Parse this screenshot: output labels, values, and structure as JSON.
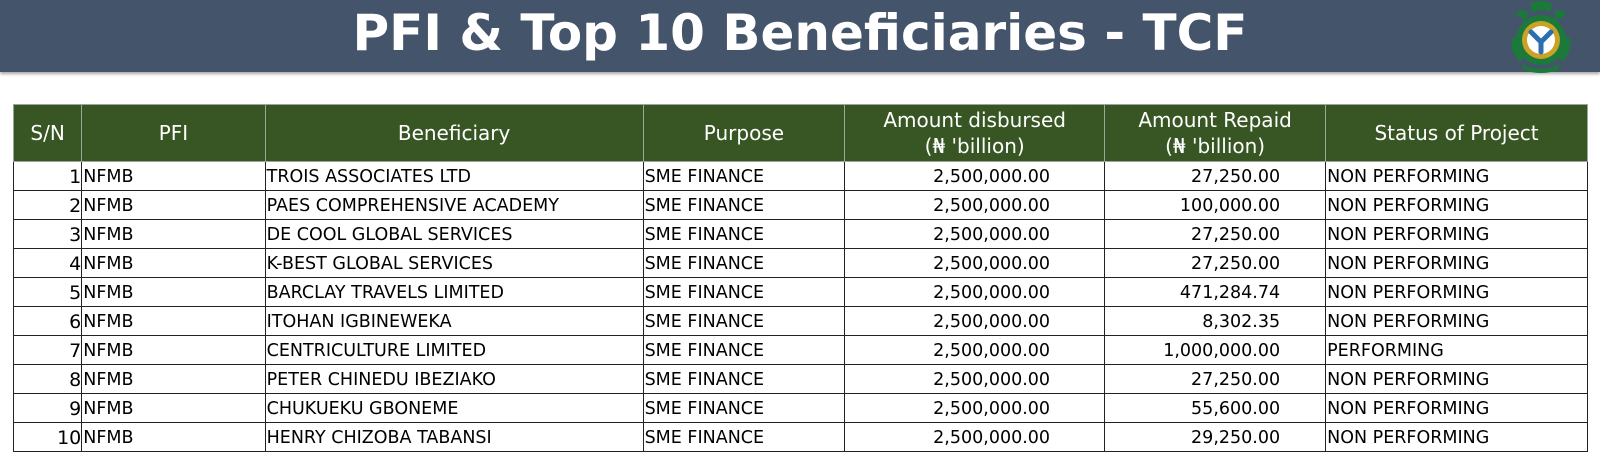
{
  "title": "PFI & Top 10 Beneficiaries - TCF",
  "logo": {
    "icon": "cbn-logo-icon",
    "colors": {
      "green": "#1b7a3a",
      "gold": "#c9a227",
      "blue": "#2a6fb0"
    }
  },
  "table": {
    "headers": {
      "sn": "S/N",
      "pfi": "PFI",
      "beneficiary": "Beneficiary",
      "purpose": "Purpose",
      "amount_disbursed_line1": "Amount disbursed",
      "amount_disbursed_line2": "(₦ 'billion)",
      "amount_repaid_line1": "Amount Repaid",
      "amount_repaid_line2": "(₦ 'billion)",
      "status": "Status of Project"
    },
    "rows": [
      {
        "sn": "1",
        "pfi": "NFMB",
        "beneficiary": "TROIS ASSOCIATES LTD",
        "purpose": "SME FINANCE",
        "disbursed": "2,500,000.00",
        "repaid": "27,250.00",
        "status": "NON PERFORMING"
      },
      {
        "sn": "2",
        "pfi": "NFMB",
        "beneficiary": "PAES COMPREHENSIVE ACADEMY",
        "purpose": "SME FINANCE",
        "disbursed": "2,500,000.00",
        "repaid": "100,000.00",
        "status": "NON PERFORMING"
      },
      {
        "sn": "3",
        "pfi": "NFMB",
        "beneficiary": "DE COOL GLOBAL SERVICES",
        "purpose": "SME FINANCE",
        "disbursed": "2,500,000.00",
        "repaid": "27,250.00",
        "status": "NON PERFORMING"
      },
      {
        "sn": "4",
        "pfi": "NFMB",
        "beneficiary": "K-BEST GLOBAL SERVICES",
        "purpose": "SME FINANCE",
        "disbursed": "2,500,000.00",
        "repaid": "27,250.00",
        "status": "NON PERFORMING"
      },
      {
        "sn": "5",
        "pfi": "NFMB",
        "beneficiary": "BARCLAY TRAVELS LIMITED",
        "purpose": "SME FINANCE",
        "disbursed": "2,500,000.00",
        "repaid": "471,284.74",
        "status": "NON PERFORMING"
      },
      {
        "sn": "6",
        "pfi": "NFMB",
        "beneficiary": "ITOHAN IGBINEWEKA",
        "purpose": "SME FINANCE",
        "disbursed": "2,500,000.00",
        "repaid": "8,302.35",
        "status": "NON PERFORMING"
      },
      {
        "sn": "7",
        "pfi": "NFMB",
        "beneficiary": "CENTRICULTURE LIMITED",
        "purpose": "SME FINANCE",
        "disbursed": "2,500,000.00",
        "repaid": "1,000,000.00",
        "status": "PERFORMING"
      },
      {
        "sn": "8",
        "pfi": "NFMB",
        "beneficiary": "PETER CHINEDU IBEZIAKO",
        "purpose": "SME FINANCE",
        "disbursed": "2,500,000.00",
        "repaid": "27,250.00",
        "status": "NON PERFORMING"
      },
      {
        "sn": "9",
        "pfi": "NFMB",
        "beneficiary": "CHUKUEKU GBONEME",
        "purpose": "SME FINANCE",
        "disbursed": "2,500,000.00",
        "repaid": "55,600.00",
        "status": "NON PERFORMING"
      },
      {
        "sn": "10",
        "pfi": "NFMB",
        "beneficiary": "HENRY CHIZOBA TABANSI",
        "purpose": "SME FINANCE",
        "disbursed": "2,500,000.00",
        "repaid": "29,250.00",
        "status": "NON PERFORMING"
      }
    ]
  },
  "colors": {
    "title_bar": "#44546a",
    "header_bg": "#375623",
    "header_text": "#ffffff"
  }
}
